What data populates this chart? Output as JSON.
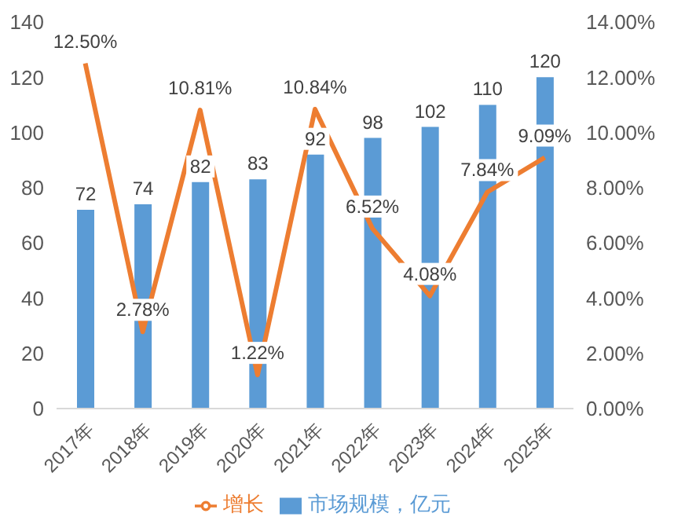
{
  "chart_data": {
    "type": "bar",
    "categories": [
      "2017年",
      "2018年",
      "2019年",
      "2020年",
      "2021年",
      "2022年",
      "2023年",
      "2024年",
      "2025年"
    ],
    "series": [
      {
        "name": "市场规模，亿元",
        "color": "#5b9bd5",
        "values": [
          72,
          74,
          82,
          83,
          92,
          98,
          102,
          110,
          120
        ],
        "value_labels": [
          "72",
          "74",
          "82",
          "83",
          "92",
          "98",
          "102",
          "110",
          "120"
        ]
      },
      {
        "name": "增长",
        "type": "line",
        "axis": "y2",
        "color": "#ed7d31",
        "values": [
          12.5,
          2.78,
          10.81,
          1.22,
          10.84,
          6.52,
          4.08,
          7.84,
          9.09
        ],
        "value_labels": [
          "12.50%",
          "2.78%",
          "10.81%",
          "1.22%",
          "10.84%",
          "6.52%",
          "4.08%",
          "7.84%",
          "9.09%"
        ]
      }
    ],
    "ylim": [
      0,
      140
    ],
    "yticks": [
      0,
      20,
      40,
      60,
      80,
      100,
      120,
      140
    ],
    "y2lim": [
      0,
      14
    ],
    "y2ticks": [
      {
        "value": 0,
        "label": "0.00%"
      },
      {
        "value": 2,
        "label": "2.00%"
      },
      {
        "value": 4,
        "label": "4.00%"
      },
      {
        "value": 6,
        "label": "6.00%"
      },
      {
        "value": 8,
        "label": "8.00%"
      },
      {
        "value": 10,
        "label": "10.00%"
      },
      {
        "value": 12,
        "label": "12.00%"
      },
      {
        "value": 14,
        "label": "14.00%"
      }
    ],
    "grid": false,
    "legend": "bottom",
    "marker": "none"
  }
}
